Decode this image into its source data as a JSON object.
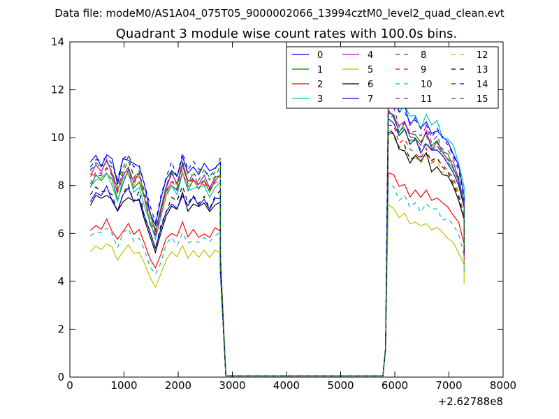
{
  "figure": {
    "suptitle": "Data file: modeM0/AS1A04_075T05_9000002066_13994cztM0_level2_quad_clean.evt"
  },
  "chart_data": {
    "type": "line",
    "title": "Quadrant 3 module wise count rates with 100.0s bins.",
    "xlabel": "",
    "ylabel": "",
    "x_offset_label": "+2.62788e8",
    "xlim": [
      0,
      8000
    ],
    "ylim": [
      0,
      14
    ],
    "x_ticks": [
      0,
      1000,
      2000,
      3000,
      4000,
      5000,
      6000,
      7000,
      8000
    ],
    "y_ticks": [
      0,
      2,
      4,
      6,
      8,
      10,
      12,
      14
    ],
    "grid": false,
    "legend": {
      "placement": "top-right",
      "columns": 4
    },
    "x": {
      "seg1_start": 380,
      "seg1_step": 100,
      "seg1_points": 25,
      "gap_start": 2880,
      "gap_end": 5780,
      "seg2_start": 5880,
      "seg2_step": 100,
      "seg2_points": 15
    },
    "series": [
      {
        "name": "0",
        "color": "#0000ff",
        "style": "solid",
        "level1": 8.8,
        "level2": 11.0,
        "rec": 0
      },
      {
        "name": "1",
        "color": "#008000",
        "style": "solid",
        "level1": 8.1,
        "level2": 10.4,
        "rec": 1
      },
      {
        "name": "2",
        "color": "#ff0000",
        "style": "solid",
        "level1": 6.1,
        "level2": 8.0,
        "rec": 2
      },
      {
        "name": "3",
        "color": "#00bfbf",
        "style": "solid",
        "level1": 8.0,
        "level2": 11.2,
        "rec": 0
      },
      {
        "name": "4",
        "color": "#bf00bf",
        "style": "solid",
        "level1": 8.4,
        "level2": 10.4,
        "rec": 1
      },
      {
        "name": "5",
        "color": "#bfbf00",
        "style": "solid",
        "level1": 5.2,
        "level2": 6.6,
        "rec": 2
      },
      {
        "name": "6",
        "color": "#000000",
        "style": "solid",
        "level1": 7.3,
        "level2": 9.4,
        "rec": 1
      },
      {
        "name": "7",
        "color": "#0000ff",
        "style": "solid",
        "level1": 7.4,
        "level2": 10.1,
        "rec": 0
      },
      {
        "name": "8",
        "color": "#008000",
        "style": "dashed",
        "level1": 8.6,
        "level2": 10.3,
        "rec": 1
      },
      {
        "name": "9",
        "color": "#ff0000",
        "style": "dashed",
        "level1": 8.3,
        "level2": 9.8,
        "rec": 0
      },
      {
        "name": "10",
        "color": "#00bfbf",
        "style": "dashed",
        "level1": 5.8,
        "level2": 7.4,
        "rec": 2
      },
      {
        "name": "11",
        "color": "#bf00bf",
        "style": "dashed",
        "level1": 8.2,
        "level2": 10.6,
        "rec": 1
      },
      {
        "name": "12",
        "color": "#bfbf00",
        "style": "dashed",
        "level1": 8.2,
        "level2": 9.6,
        "rec": 0
      },
      {
        "name": "13",
        "color": "#000000",
        "style": "dashed",
        "level1": 7.5,
        "level2": 9.6,
        "rec": 1
      },
      {
        "name": "14",
        "color": "#0000ff",
        "style": "dashed",
        "level1": 8.8,
        "level2": 10.9,
        "rec": 0
      },
      {
        "name": "15",
        "color": "#008000",
        "style": "dashed",
        "level1": 8.5,
        "level2": 10.2,
        "rec": 1
      }
    ]
  }
}
